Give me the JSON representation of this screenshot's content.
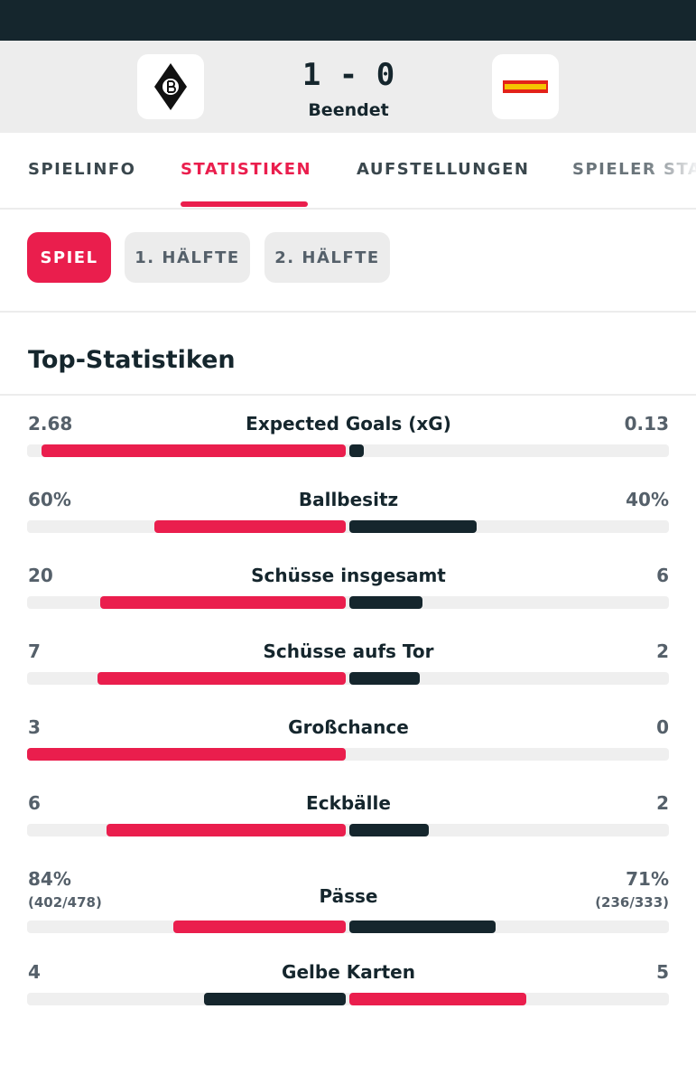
{
  "header": {
    "score": "1 - 0",
    "status": "Beendet"
  },
  "tabs": [
    "SPIELINFO",
    "STATISTIKEN",
    "AUFSTELLUNGEN",
    "SPIELER STA"
  ],
  "active_tab": 1,
  "filters": [
    "SPIEL",
    "1. HÄLFTE",
    "2. HÄLFTE"
  ],
  "active_filter": 0,
  "section_title": "Top-Statistiken",
  "stats": [
    {
      "name": "Expected Goals (xG)",
      "home": 2.68,
      "away": 0.13,
      "leader": "home"
    },
    {
      "name": "Ballbesitz",
      "home": 60,
      "home_label": "60%",
      "away": 40,
      "away_label": "40%",
      "leader": "home"
    },
    {
      "name": "Schüsse insgesamt",
      "home": 20,
      "away": 6,
      "leader": "home"
    },
    {
      "name": "Schüsse aufs Tor",
      "home": 7,
      "away": 2,
      "leader": "home"
    },
    {
      "name": "Großchance",
      "home": 3,
      "away": 0,
      "leader": "home"
    },
    {
      "name": "Eckbälle",
      "home": 6,
      "away": 2,
      "leader": "home"
    },
    {
      "name": "Pässe",
      "home": 84,
      "home_label": "84%",
      "home_detail": "(402/478)",
      "away": 71,
      "away_label": "71%",
      "away_detail": "(236/333)",
      "leader": "home"
    },
    {
      "name": "Gelbe Karten",
      "home": 4,
      "away": 5,
      "leader": "away"
    }
  ]
}
